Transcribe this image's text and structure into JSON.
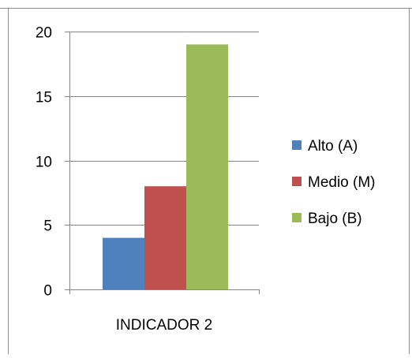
{
  "chart_data": {
    "type": "bar",
    "categories": [
      "INDICADOR 2"
    ],
    "series": [
      {
        "name": "Alto (A)",
        "values": [
          4
        ],
        "color": "#4F81BD"
      },
      {
        "name": "Medio (M)",
        "values": [
          8
        ],
        "color": "#C0504D"
      },
      {
        "name": "Bajo (B)",
        "values": [
          19
        ],
        "color": "#9BBB59"
      }
    ],
    "title": "",
    "xlabel": "",
    "ylabel": "",
    "ylim": [
      0,
      20
    ],
    "yticks": [
      "0",
      "5",
      "10",
      "15",
      "20"
    ],
    "grid": true,
    "legend_position": "right"
  }
}
